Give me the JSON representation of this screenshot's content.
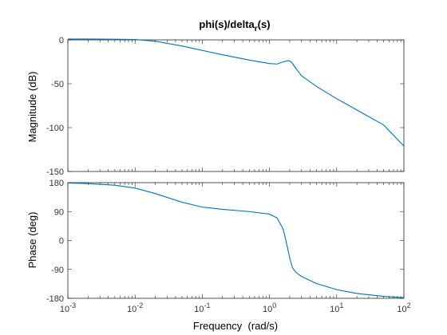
{
  "chart_data": [
    {
      "type": "line",
      "panel": "magnitude",
      "title": "phi(s)/delta",
      "title_subscript": "r",
      "title_suffix": "(s)",
      "xlabel": "",
      "ylabel": "Magnitude (dB)",
      "xscale": "log",
      "xlim": [
        0.001,
        100
      ],
      "ylim": [
        -150,
        0
      ],
      "yticks": [
        0,
        -50,
        -100,
        -150
      ],
      "ytick_labels": [
        "0",
        "-50",
        "-100",
        "-150"
      ],
      "grid": false,
      "series": [
        {
          "x": [
            0.001,
            0.002,
            0.005,
            0.01,
            0.02,
            0.05,
            0.1,
            0.2,
            0.5,
            1.0,
            1.3,
            1.6,
            1.9,
            2.1,
            2.5,
            3.0,
            5.0,
            10,
            20,
            50,
            100
          ],
          "y": [
            1,
            1,
            0.8,
            0.4,
            -1.5,
            -7,
            -12,
            -17,
            -23,
            -27,
            -27.5,
            -25,
            -23.5,
            -25,
            -33,
            -41,
            -53,
            -67,
            -80,
            -97,
            -121
          ]
        }
      ]
    },
    {
      "type": "line",
      "panel": "phase",
      "title": "",
      "xlabel": "Frequency  (rad/s)",
      "ylabel": "Phase (deg)",
      "xscale": "log",
      "xlim": [
        0.001,
        100
      ],
      "ylim": [
        -180,
        180
      ],
      "xticks": [
        0.001,
        0.01,
        0.1,
        1,
        10,
        100
      ],
      "xtick_labels": [
        [
          "10",
          "-3"
        ],
        [
          "10",
          "-2"
        ],
        [
          "10",
          "-1"
        ],
        [
          "10",
          "0"
        ],
        [
          "10",
          "1"
        ],
        [
          "10",
          "2"
        ]
      ],
      "yticks": [
        180,
        90,
        0,
        -90,
        -180
      ],
      "ytick_labels": [
        "180",
        "90",
        "0",
        "-90",
        "-180"
      ],
      "grid": false,
      "series": [
        {
          "x": [
            0.001,
            0.002,
            0.005,
            0.01,
            0.02,
            0.05,
            0.1,
            0.2,
            0.5,
            1.0,
            1.3,
            1.6,
            1.8,
            2.0,
            2.2,
            2.5,
            3.0,
            5.0,
            10,
            20,
            50,
            100
          ],
          "y": [
            179,
            177,
            172,
            163,
            146,
            119,
            104,
            97,
            90,
            82,
            70,
            35,
            -10,
            -55,
            -85,
            -100,
            -112,
            -134,
            -153,
            -165,
            -174,
            -178
          ]
        }
      ]
    }
  ]
}
